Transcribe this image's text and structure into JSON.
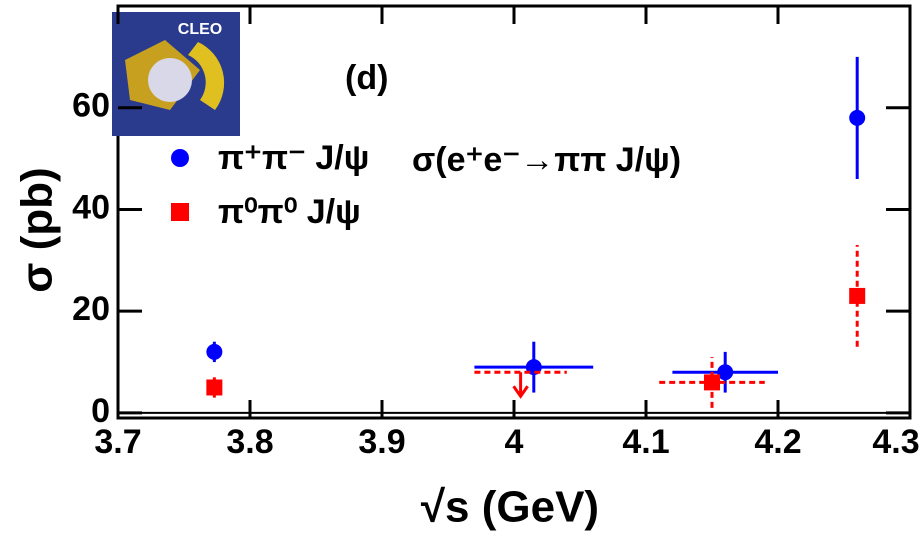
{
  "chart_data": {
    "type": "scatter",
    "title": "σ(e⁺e⁻→ππ J/ψ)",
    "panel_label": "(d)",
    "logo": "CLEO",
    "x_label": "√s (GeV)",
    "y_label": "σ (pb)",
    "xlim": [
      3.7,
      4.3
    ],
    "ylim": [
      -1,
      80
    ],
    "xticks": [
      3.7,
      3.8,
      3.9,
      4,
      4.1,
      4.2,
      4.3
    ],
    "yticks": [
      0,
      20,
      40,
      60
    ],
    "legend": "upper left",
    "series": [
      {
        "name": "π⁺π⁻ J/ψ",
        "color": "#0000ff",
        "marker": "circle",
        "line_style": "solid",
        "x": [
          3.773,
          4.015,
          4.16,
          4.26
        ],
        "values": [
          12,
          9,
          8,
          58
        ],
        "xerr": [
          0,
          0.045,
          0.04,
          0
        ],
        "yerr": [
          2,
          5,
          4,
          12
        ],
        "upper_limits": [
          false,
          false,
          false,
          false
        ]
      },
      {
        "name": "π⁰π⁰ J/ψ",
        "color": "#ff0000",
        "marker": "square",
        "line_style": "dashed",
        "x": [
          3.773,
          4.005,
          4.15,
          4.26
        ],
        "values": [
          5,
          8,
          6,
          23
        ],
        "xerr": [
          0,
          0.035,
          0.04,
          0
        ],
        "yerr": [
          2,
          0,
          5,
          10
        ],
        "upper_limits": [
          false,
          true,
          false,
          false
        ]
      }
    ]
  }
}
